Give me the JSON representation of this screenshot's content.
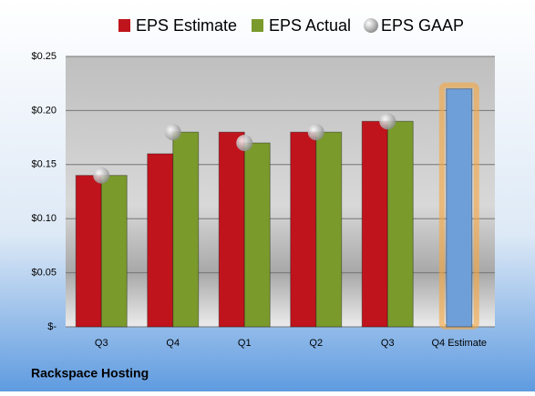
{
  "chart_data": {
    "type": "bar",
    "categories": [
      "Q3",
      "Q4",
      "Q1",
      "Q2",
      "Q3",
      "Q4 Estimate"
    ],
    "series": [
      {
        "name": "EPS Estimate",
        "color": "#c0141c",
        "values": [
          0.14,
          0.16,
          0.18,
          0.18,
          0.19,
          0.22
        ]
      },
      {
        "name": "EPS Actual",
        "color": "#7a9a2c",
        "values": [
          0.14,
          0.18,
          0.17,
          0.18,
          0.19,
          null
        ]
      },
      {
        "name": "EPS GAAP",
        "color": "#a0a0a0",
        "type": "scatter",
        "values": [
          0.14,
          0.18,
          0.17,
          0.18,
          0.19,
          null
        ]
      }
    ],
    "highlight_index": 5,
    "highlight_color": "#6f9fd8",
    "ylim": [
      0,
      0.25
    ],
    "yticks": [
      {
        "value": 0,
        "label": "$-"
      },
      {
        "value": 0.05,
        "label": "$0.05"
      },
      {
        "value": 0.1,
        "label": "$0.10"
      },
      {
        "value": 0.15,
        "label": "$0.15"
      },
      {
        "value": 0.2,
        "label": "$0.20"
      },
      {
        "value": 0.25,
        "label": "$0.25"
      }
    ],
    "grid": true,
    "footer": "Rackspace Hosting"
  }
}
